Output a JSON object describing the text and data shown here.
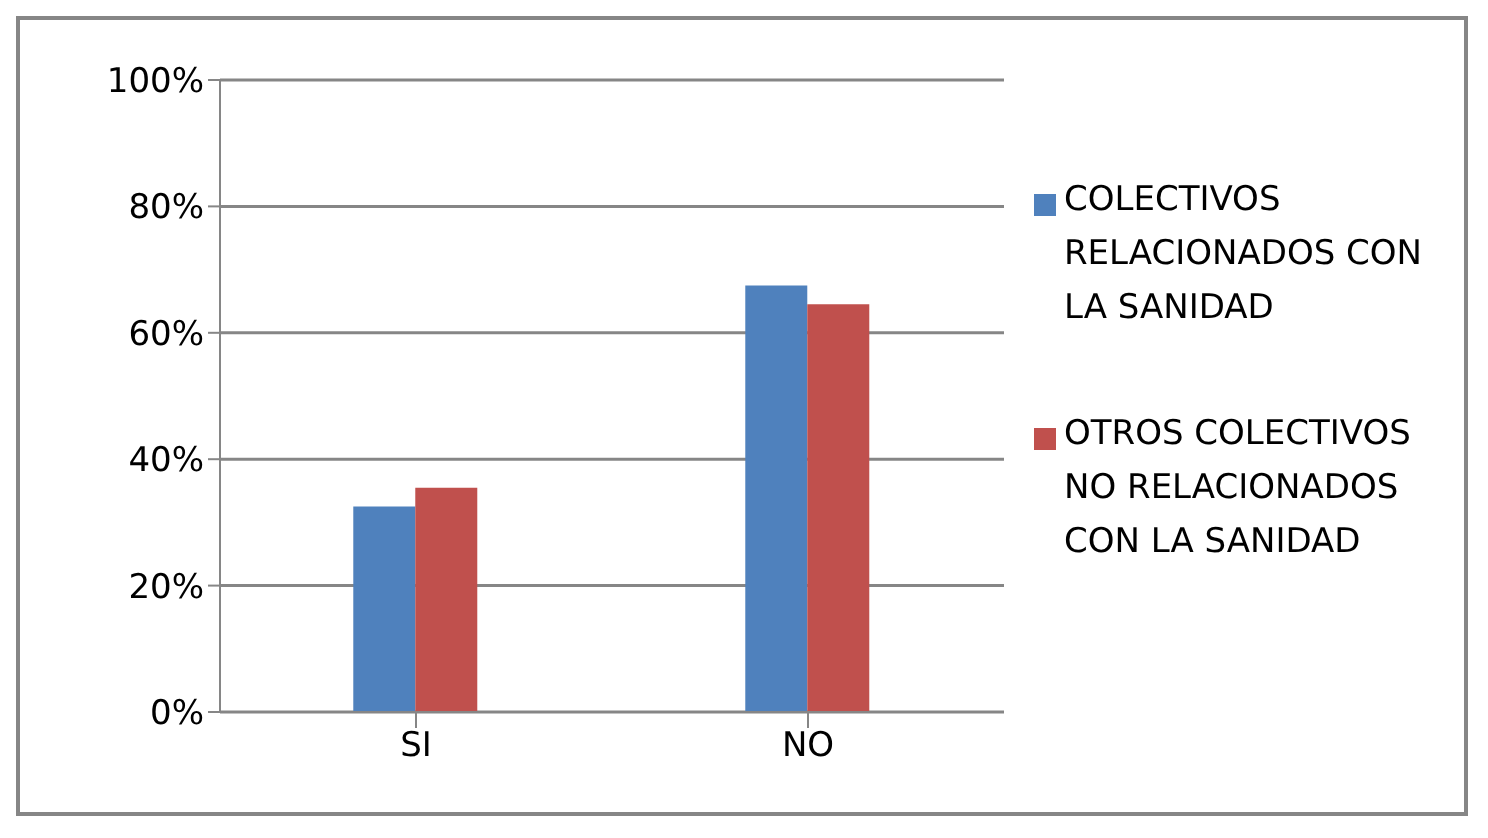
{
  "chart_data": {
    "type": "bar",
    "categories": [
      "SI",
      "NO"
    ],
    "series": [
      {
        "name": "COLECTIVOS RELACIONADOS CON LA SANIDAD",
        "color": "#4f81bd",
        "values": [
          32.5,
          67.5
        ]
      },
      {
        "name": "OTROS COLECTIVOS NO RELACIONADOS CON LA SANIDAD",
        "color": "#c0504d",
        "values": [
          35.5,
          64.5
        ]
      }
    ],
    "ylim": [
      0,
      100
    ],
    "yticks": [
      {
        "value": 0,
        "label": "0%"
      },
      {
        "value": 20,
        "label": "20%"
      },
      {
        "value": 40,
        "label": "40%"
      },
      {
        "value": 60,
        "label": "60%"
      },
      {
        "value": 80,
        "label": "80%"
      },
      {
        "value": 100,
        "label": "100%"
      }
    ],
    "grid": "y",
    "legend": "right"
  }
}
